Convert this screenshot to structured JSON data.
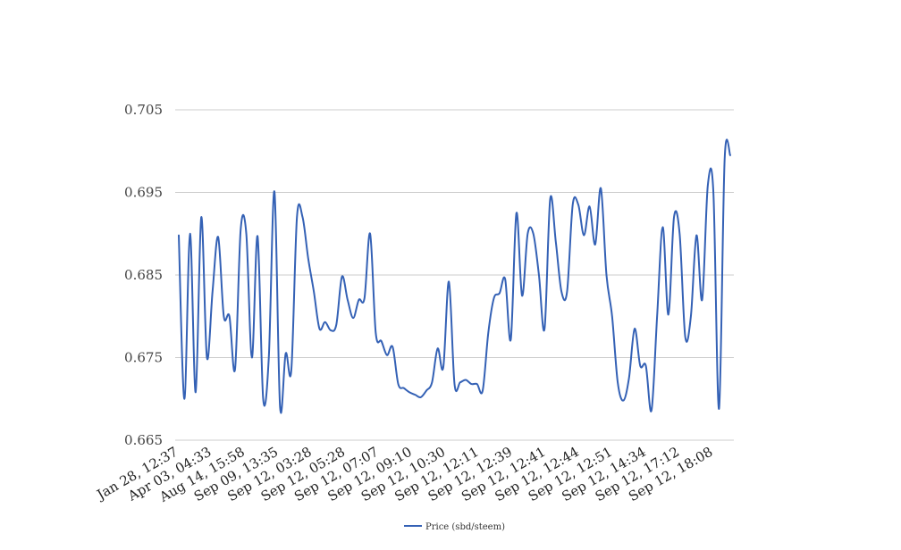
{
  "chart_data": {
    "type": "line",
    "title": "",
    "xlabel": "",
    "ylabel": "",
    "ylim": [
      0.665,
      0.705
    ],
    "yticks": [
      "0.705",
      "0.695",
      "0.685",
      "0.675",
      "0.665"
    ],
    "ytick_values": [
      0.705,
      0.695,
      0.685,
      0.675,
      0.665
    ],
    "xticks": [
      "Jan 28, 12:37",
      "Apr 03, 04:33",
      "Aug 14, 15:58",
      "Sep 09, 13:35",
      "Sep 12, 03:28",
      "Sep 12, 05:28",
      "Sep 12, 07:07",
      "Sep 12, 09:10",
      "Sep 12, 10:30",
      "Sep 12, 12:11",
      "Sep 12, 12:39",
      "Sep 12, 12:41",
      "Sep 12, 12:44",
      "Sep 12, 12:51",
      "Sep 12, 14:34",
      "Sep 12, 17:12",
      "Sep 12, 18:08"
    ],
    "grid": true,
    "legend_position": "bottom-center",
    "colors": {
      "line": "#3461b5",
      "grid": "#cccccc"
    },
    "series": [
      {
        "name": "Price (sbd/steem)",
        "values": [
          0.6898,
          0.67,
          0.69,
          0.6708,
          0.692,
          0.675,
          0.683,
          0.6896,
          0.68,
          0.68,
          0.6736,
          0.6905,
          0.69,
          0.675,
          0.6897,
          0.67,
          0.675,
          0.6951,
          0.669,
          0.6755,
          0.6735,
          0.692,
          0.692,
          0.687,
          0.683,
          0.6785,
          0.6793,
          0.6783,
          0.679,
          0.6848,
          0.682,
          0.6798,
          0.682,
          0.6822,
          0.69,
          0.678,
          0.677,
          0.6753,
          0.6763,
          0.6718,
          0.6713,
          0.6708,
          0.6705,
          0.6702,
          0.671,
          0.672,
          0.6761,
          0.6738,
          0.6842,
          0.6718,
          0.672,
          0.6723,
          0.6718,
          0.6718,
          0.671,
          0.678,
          0.6822,
          0.6828,
          0.6845,
          0.6772,
          0.6925,
          0.6825,
          0.69,
          0.69,
          0.685,
          0.6785,
          0.6942,
          0.689,
          0.683,
          0.683,
          0.6935,
          0.6935,
          0.6898,
          0.6933,
          0.6887,
          0.6955,
          0.685,
          0.68,
          0.672,
          0.6698,
          0.6725,
          0.6785,
          0.674,
          0.674,
          0.6686,
          0.68,
          0.6908,
          0.6802,
          0.692,
          0.69,
          0.6775,
          0.68,
          0.6898,
          0.682,
          0.6958,
          0.695,
          0.6688,
          0.699,
          0.6995
        ]
      }
    ]
  }
}
